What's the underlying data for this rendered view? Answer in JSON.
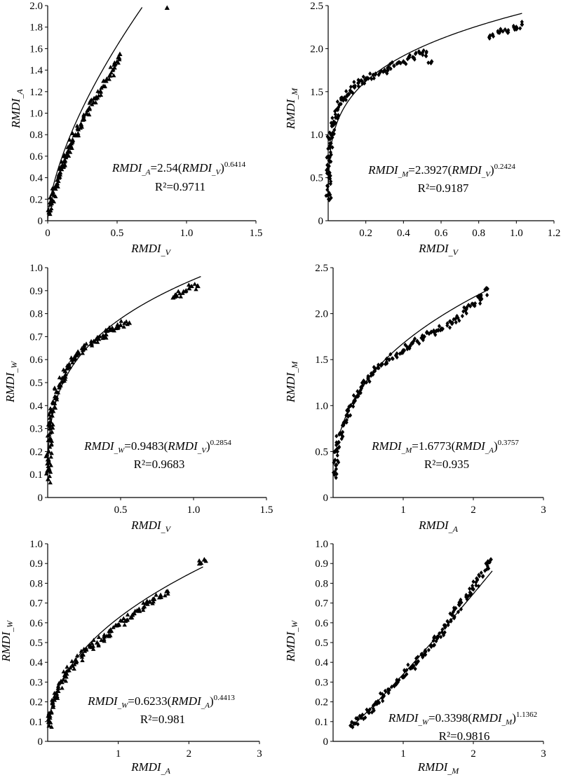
{
  "chart_data": [
    {
      "type": "scatter",
      "marker": "triangle",
      "xlabel": {
        "base": "RMDI",
        "sub": "_V"
      },
      "ylabel": {
        "base": "RMDI",
        "sub": "_A"
      },
      "xlim": [
        0,
        1.5
      ],
      "ylim": [
        0,
        2.0
      ],
      "xticks": [
        "0",
        "0.5",
        "1.0",
        "1.5"
      ],
      "xtick_values": [
        0,
        0.5,
        1.0,
        1.5
      ],
      "yticks": [
        "0",
        "0.2",
        "0.4",
        "0.6",
        "0.8",
        "1.0",
        "1.2",
        "1.4",
        "1.6",
        "1.8",
        "2.0"
      ],
      "ytick_values": [
        0,
        0.2,
        0.4,
        0.6,
        0.8,
        1.0,
        1.2,
        1.4,
        1.6,
        1.8,
        2.0
      ],
      "fit": {
        "a": 2.54,
        "b": 0.6414,
        "x_range": [
          0,
          0.68
        ]
      },
      "equation": {
        "lhs_sub": "_A",
        "coef": "=2.54(",
        "rhs_sub": "_V",
        "exponent": "0.6414",
        "r2": "R²=0.9711"
      },
      "points": [
        [
          0.01,
          0.08
        ],
        [
          0.02,
          0.15
        ],
        [
          0.03,
          0.2
        ],
        [
          0.04,
          0.25
        ],
        [
          0.05,
          0.3
        ],
        [
          0.06,
          0.33
        ],
        [
          0.07,
          0.38
        ],
        [
          0.08,
          0.4
        ],
        [
          0.09,
          0.45
        ],
        [
          0.1,
          0.48
        ],
        [
          0.11,
          0.5
        ],
        [
          0.12,
          0.55
        ],
        [
          0.13,
          0.6
        ],
        [
          0.14,
          0.62
        ],
        [
          0.15,
          0.65
        ],
        [
          0.16,
          0.7
        ],
        [
          0.17,
          0.72
        ],
        [
          0.18,
          0.75
        ],
        [
          0.2,
          0.8
        ],
        [
          0.22,
          0.85
        ],
        [
          0.24,
          0.9
        ],
        [
          0.26,
          0.95
        ],
        [
          0.28,
          1.0
        ],
        [
          0.3,
          1.05
        ],
        [
          0.33,
          1.1
        ],
        [
          0.35,
          1.15
        ],
        [
          0.38,
          1.2
        ],
        [
          0.4,
          1.25
        ],
        [
          0.42,
          1.3
        ],
        [
          0.45,
          1.35
        ],
        [
          0.48,
          1.45
        ],
        [
          0.52,
          1.55
        ],
        [
          0.86,
          1.98
        ]
      ]
    },
    {
      "type": "scatter",
      "marker": "diamond",
      "xlabel": {
        "base": "RMDI",
        "sub": "_V"
      },
      "ylabel": {
        "base": "RMDI",
        "sub": "_M"
      },
      "xlim": [
        0,
        1.2
      ],
      "ylim": [
        0,
        2.5
      ],
      "xticks": [
        "0.2",
        "0.4",
        "0.6",
        "0.8",
        "1.0",
        "1.2"
      ],
      "xtick_values": [
        0.2,
        0.4,
        0.6,
        0.8,
        1.0,
        1.2
      ],
      "yticks": [
        "0",
        "0.5",
        "1.0",
        "1.5",
        "2.0",
        "2.5"
      ],
      "ytick_values": [
        0,
        0.5,
        1.0,
        1.5,
        2.0,
        2.5
      ],
      "fit": {
        "a": 2.3927,
        "b": 0.2424,
        "x_range": [
          0.0005,
          1.03
        ]
      },
      "equation": {
        "lhs_sub": "_M",
        "coef": "=2.3927(",
        "rhs_sub": "_V",
        "exponent": "0.2424",
        "r2": "R²=0.9187"
      },
      "points": [
        [
          0.003,
          0.25
        ],
        [
          0.004,
          0.5
        ],
        [
          0.005,
          0.7
        ],
        [
          0.008,
          0.85
        ],
        [
          0.01,
          0.95
        ],
        [
          0.015,
          1.0
        ],
        [
          0.02,
          1.1
        ],
        [
          0.03,
          1.15
        ],
        [
          0.04,
          1.2
        ],
        [
          0.05,
          1.3
        ],
        [
          0.06,
          1.35
        ],
        [
          0.08,
          1.4
        ],
        [
          0.1,
          1.45
        ],
        [
          0.12,
          1.5
        ],
        [
          0.14,
          1.55
        ],
        [
          0.16,
          1.6
        ],
        [
          0.18,
          1.62
        ],
        [
          0.2,
          1.65
        ],
        [
          0.25,
          1.7
        ],
        [
          0.3,
          1.75
        ],
        [
          0.35,
          1.8
        ],
        [
          0.4,
          1.85
        ],
        [
          0.45,
          1.9
        ],
        [
          0.5,
          1.95
        ],
        [
          0.55,
          1.85
        ],
        [
          0.86,
          2.15
        ],
        [
          1.0,
          2.25
        ],
        [
          1.03,
          2.28
        ]
      ]
    },
    {
      "type": "scatter",
      "marker": "triangle",
      "xlabel": {
        "base": "RMDI",
        "sub": "_V"
      },
      "ylabel": {
        "base": "RMDI",
        "sub": "_W"
      },
      "xlim": [
        0,
        1.5
      ],
      "ylim": [
        0,
        1.0
      ],
      "xticks": [
        "0.5",
        "1.0",
        "1.5"
      ],
      "xtick_values": [
        0.5,
        1.0,
        1.5
      ],
      "yticks": [
        "0",
        "0.1",
        "0.2",
        "0.3",
        "0.4",
        "0.5",
        "0.6",
        "0.7",
        "0.8",
        "0.9",
        "1.0"
      ],
      "ytick_values": [
        0,
        0.1,
        0.2,
        0.3,
        0.4,
        0.5,
        0.6,
        0.7,
        0.8,
        0.9,
        1.0
      ],
      "fit": {
        "a": 0.9483,
        "b": 0.2854,
        "x_range": [
          0.0005,
          1.05
        ]
      },
      "equation": {
        "lhs_sub": "_W",
        "coef": "=0.9483(",
        "rhs_sub": "_V",
        "exponent": "0.2854",
        "r2": "R²=0.9683"
      },
      "points": [
        [
          0.003,
          0.08
        ],
        [
          0.005,
          0.12
        ],
        [
          0.008,
          0.2
        ],
        [
          0.01,
          0.25
        ],
        [
          0.015,
          0.3
        ],
        [
          0.02,
          0.33
        ],
        [
          0.03,
          0.38
        ],
        [
          0.04,
          0.41
        ],
        [
          0.05,
          0.44
        ],
        [
          0.06,
          0.46
        ],
        [
          0.08,
          0.49
        ],
        [
          0.1,
          0.52
        ],
        [
          0.12,
          0.55
        ],
        [
          0.15,
          0.57
        ],
        [
          0.18,
          0.6
        ],
        [
          0.2,
          0.62
        ],
        [
          0.25,
          0.65
        ],
        [
          0.3,
          0.67
        ],
        [
          0.35,
          0.69
        ],
        [
          0.4,
          0.71
        ],
        [
          0.45,
          0.73
        ],
        [
          0.5,
          0.75
        ],
        [
          0.56,
          0.76
        ],
        [
          0.86,
          0.87
        ],
        [
          0.97,
          0.91
        ],
        [
          1.03,
          0.92
        ]
      ]
    },
    {
      "type": "scatter",
      "marker": "diamond",
      "xlabel": {
        "base": "RMDI",
        "sub": "_A"
      },
      "ylabel": {
        "base": "RMDI",
        "sub": "_M"
      },
      "xlim": [
        0,
        3
      ],
      "ylim": [
        0,
        2.5
      ],
      "xticks": [
        "1",
        "2",
        "3"
      ],
      "xtick_values": [
        1,
        2,
        3
      ],
      "yticks": [
        "0",
        "0.5",
        "1.0",
        "1.5",
        "2.0",
        "2.5"
      ],
      "ytick_values": [
        0,
        0.5,
        1.0,
        1.5,
        2.0,
        2.5
      ],
      "fit": {
        "a": 1.6773,
        "b": 0.3757,
        "x_range": [
          0.1,
          2.2
        ]
      },
      "equation": {
        "lhs_sub": "_M",
        "coef": "=1.6773(",
        "rhs_sub": "_A",
        "exponent": "0.3757",
        "r2": "R²=0.935"
      },
      "points": [
        [
          0.02,
          0.25
        ],
        [
          0.04,
          0.35
        ],
        [
          0.06,
          0.5
        ],
        [
          0.08,
          0.6
        ],
        [
          0.1,
          0.7
        ],
        [
          0.15,
          0.8
        ],
        [
          0.2,
          0.9
        ],
        [
          0.25,
          1.0
        ],
        [
          0.3,
          1.05
        ],
        [
          0.35,
          1.1
        ],
        [
          0.4,
          1.2
        ],
        [
          0.45,
          1.25
        ],
        [
          0.5,
          1.3
        ],
        [
          0.6,
          1.4
        ],
        [
          0.7,
          1.45
        ],
        [
          0.8,
          1.5
        ],
        [
          0.9,
          1.55
        ],
        [
          1.0,
          1.6
        ],
        [
          1.1,
          1.65
        ],
        [
          1.2,
          1.7
        ],
        [
          1.3,
          1.75
        ],
        [
          1.4,
          1.8
        ],
        [
          1.5,
          1.82
        ],
        [
          1.7,
          1.9
        ],
        [
          1.9,
          2.05
        ],
        [
          2.0,
          2.1
        ],
        [
          2.1,
          2.15
        ],
        [
          2.2,
          2.27
        ]
      ]
    },
    {
      "type": "scatter",
      "marker": "triangle",
      "xlabel": {
        "base": "RMDI",
        "sub": "_A"
      },
      "ylabel": {
        "base": "RMDI",
        "sub": "_W"
      },
      "xlim": [
        0,
        3
      ],
      "ylim": [
        0,
        1.0
      ],
      "xticks": [
        "1",
        "2",
        "3"
      ],
      "xtick_values": [
        1,
        2,
        3
      ],
      "yticks": [
        "0",
        "0.1",
        "0.2",
        "0.3",
        "0.4",
        "0.5",
        "0.6",
        "0.7",
        "0.8",
        "0.9",
        "1.0"
      ],
      "ytick_values": [
        0,
        0.1,
        0.2,
        0.3,
        0.4,
        0.5,
        0.6,
        0.7,
        0.8,
        0.9,
        1.0
      ],
      "fit": {
        "a": 0.6233,
        "b": 0.4413,
        "x_range": [
          0.02,
          2.2
        ]
      },
      "equation": {
        "lhs_sub": "_W",
        "coef": "=0.6233(",
        "rhs_sub": "_A",
        "exponent": "0.4413",
        "r2": "R²=0.981"
      },
      "points": [
        [
          0.02,
          0.08
        ],
        [
          0.03,
          0.12
        ],
        [
          0.05,
          0.15
        ],
        [
          0.07,
          0.2
        ],
        [
          0.1,
          0.22
        ],
        [
          0.15,
          0.27
        ],
        [
          0.2,
          0.3
        ],
        [
          0.25,
          0.33
        ],
        [
          0.3,
          0.36
        ],
        [
          0.4,
          0.4
        ],
        [
          0.5,
          0.44
        ],
        [
          0.6,
          0.48
        ],
        [
          0.7,
          0.5
        ],
        [
          0.8,
          0.53
        ],
        [
          0.9,
          0.56
        ],
        [
          1.0,
          0.59
        ],
        [
          1.1,
          0.61
        ],
        [
          1.2,
          0.64
        ],
        [
          1.3,
          0.66
        ],
        [
          1.4,
          0.7
        ],
        [
          1.5,
          0.72
        ],
        [
          1.6,
          0.74
        ],
        [
          1.7,
          0.76
        ],
        [
          2.15,
          0.9
        ],
        [
          2.22,
          0.92
        ]
      ]
    },
    {
      "type": "scatter",
      "marker": "diamond",
      "xlabel": {
        "base": "RMDI",
        "sub": "_M"
      },
      "ylabel": {
        "base": "RMDI",
        "sub": "_W"
      },
      "xlim": [
        0,
        3
      ],
      "ylim": [
        0,
        1.0
      ],
      "xticks": [
        "1",
        "2",
        "3"
      ],
      "xtick_values": [
        1,
        2,
        3
      ],
      "yticks": [
        "0",
        "0.1",
        "0.2",
        "0.3",
        "0.4",
        "0.5",
        "0.6",
        "0.7",
        "0.8",
        "0.9",
        "1.0"
      ],
      "ytick_values": [
        0,
        0.1,
        0.2,
        0.3,
        0.4,
        0.5,
        0.6,
        0.7,
        0.8,
        0.9,
        1.0
      ],
      "fit": {
        "a": 0.3398,
        "b": 1.1362,
        "x_range": [
          0.25,
          2.27
        ]
      },
      "equation": {
        "lhs_sub": "_W",
        "coef": "=0.3398(",
        "rhs_sub": "_M",
        "exponent": "1.1362",
        "r2": "R²=0.9816"
      },
      "points": [
        [
          0.25,
          0.08
        ],
        [
          0.3,
          0.09
        ],
        [
          0.4,
          0.12
        ],
        [
          0.5,
          0.15
        ],
        [
          0.6,
          0.19
        ],
        [
          0.7,
          0.22
        ],
        [
          0.8,
          0.26
        ],
        [
          0.9,
          0.29
        ],
        [
          1.0,
          0.33
        ],
        [
          1.1,
          0.37
        ],
        [
          1.2,
          0.4
        ],
        [
          1.3,
          0.44
        ],
        [
          1.4,
          0.48
        ],
        [
          1.5,
          0.53
        ],
        [
          1.6,
          0.58
        ],
        [
          1.7,
          0.64
        ],
        [
          1.8,
          0.69
        ],
        [
          1.9,
          0.73
        ],
        [
          2.0,
          0.77
        ],
        [
          2.2,
          0.9
        ],
        [
          2.25,
          0.92
        ]
      ]
    }
  ]
}
